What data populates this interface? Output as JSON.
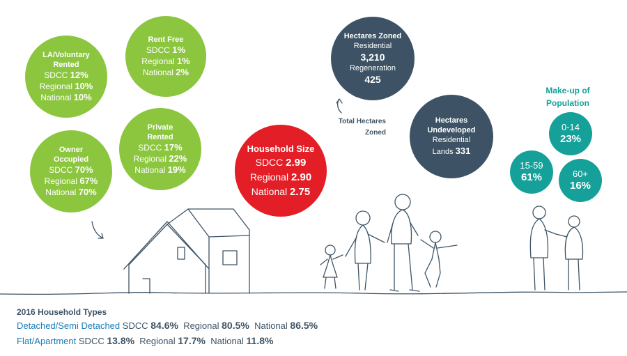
{
  "tenure": {
    "rent_free": {
      "title": "Rent Free",
      "rows": [
        {
          "label": "SDCC",
          "value": "1%"
        },
        {
          "label": "Regional",
          "value": "1%"
        },
        {
          "label": "National",
          "value": "2%"
        }
      ]
    },
    "la_voluntary": {
      "title_line1": "LA/Voluntary",
      "title_line2": "Rented",
      "rows": [
        {
          "label": "SDCC",
          "value": "12%"
        },
        {
          "label": "Regional",
          "value": "10%"
        },
        {
          "label": "National",
          "value": "10%"
        }
      ]
    },
    "private_rented": {
      "title_line1": "Private",
      "title_line2": "Rented",
      "rows": [
        {
          "label": "SDCC",
          "value": "17%"
        },
        {
          "label": "Regional",
          "value": "22%"
        },
        {
          "label": "National",
          "value": "19%"
        }
      ]
    },
    "owner_occupied": {
      "title_line1": "Owner",
      "title_line2": "Occupied",
      "rows": [
        {
          "label": "SDCC",
          "value": "70%"
        },
        {
          "label": "Regional",
          "value": "67%"
        },
        {
          "label": "National",
          "value": "70%"
        }
      ]
    }
  },
  "household_size": {
    "title": "Household Size",
    "rows": [
      {
        "label": "SDCC",
        "value": "2.99"
      },
      {
        "label": "Regional",
        "value": "2.90"
      },
      {
        "label": "National",
        "value": "2.75"
      }
    ]
  },
  "hectares_zoned": {
    "title": "Hectares Zoned",
    "residential_label": "Residential",
    "residential_value": "3,210",
    "regeneration_label": "Regeneration",
    "regeneration_value": "425"
  },
  "total_hectares_label_line1": "Total Hectares",
  "total_hectares_label_line2": "Zoned",
  "hectares_undeveloped": {
    "title_line1": "Hectares",
    "title_line2": "Undeveloped",
    "line3": "Residential",
    "line4_label": "Lands",
    "line4_value": "331"
  },
  "population": {
    "title_line1": "Make-up of",
    "title_line2": "Population",
    "groups": [
      {
        "age": "0-14",
        "pct": "23%"
      },
      {
        "age": "15-59",
        "pct": "61%"
      },
      {
        "age": "60+",
        "pct": "16%"
      }
    ]
  },
  "household_types": {
    "title": "2016 Household Types",
    "rows": [
      {
        "type": "Detached/Semi Detached",
        "sdcc_label": "SDCC",
        "sdcc": "84.6%",
        "regional_label": "Regional",
        "regional": "80.5%",
        "national_label": "National",
        "national": "86.5%"
      },
      {
        "type": "Flat/Apartment",
        "sdcc_label": "SDCC",
        "sdcc": "13.8%",
        "regional_label": "Regional",
        "regional": "17.7%",
        "national_label": "National",
        "national": "11.8%"
      }
    ]
  },
  "colors": {
    "green": "#8cc63f",
    "navy": "#3d5365",
    "red": "#e31e26",
    "teal": "#15a19a",
    "blue": "#1a7bb9"
  }
}
